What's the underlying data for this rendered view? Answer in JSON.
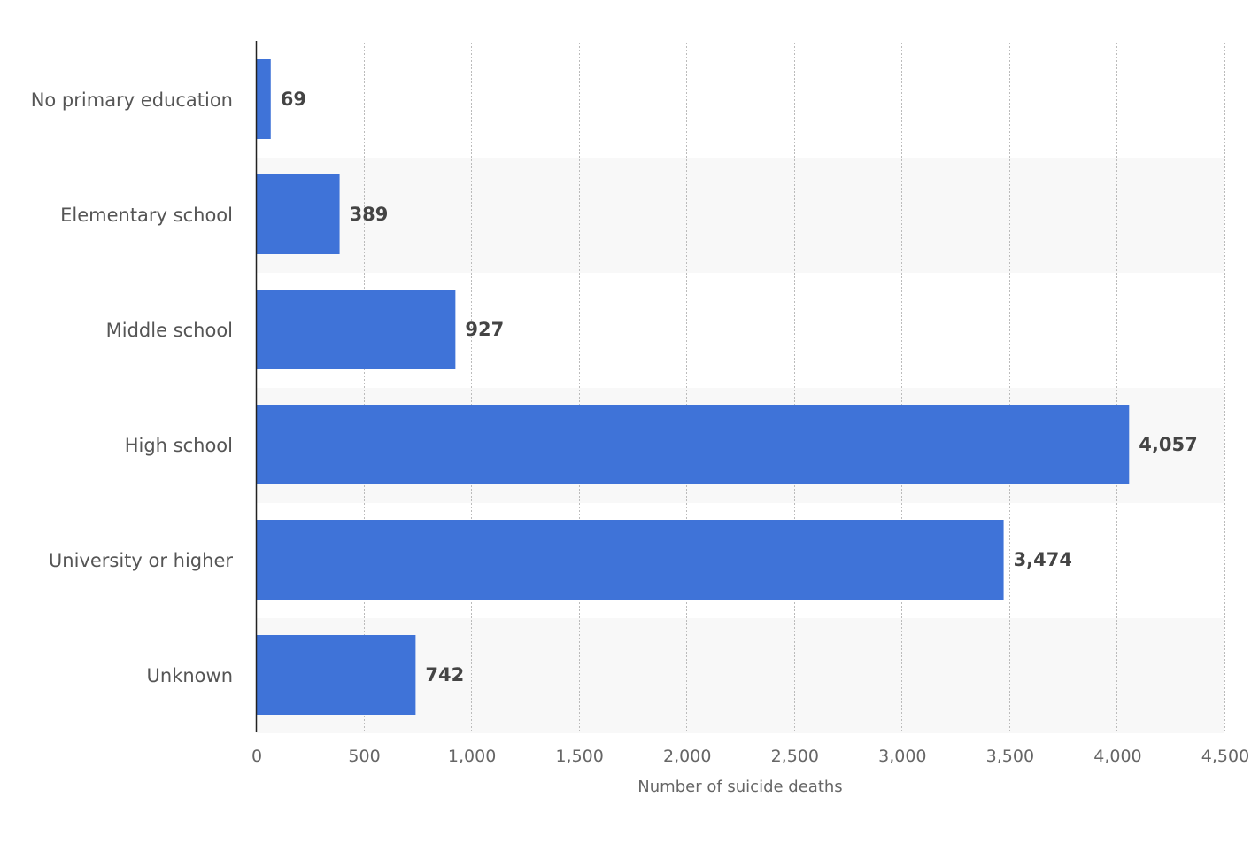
{
  "chart_data": {
    "type": "bar",
    "orientation": "horizontal",
    "categories": [
      "No primary education",
      "Elementary school",
      "Middle school",
      "High school",
      "University or higher",
      "Unknown"
    ],
    "values": [
      69,
      389,
      927,
      4057,
      3474,
      742
    ],
    "value_labels": [
      "69",
      "389",
      "927",
      "4,057",
      "3,474",
      "742"
    ],
    "xlabel": "Number of suicide deaths",
    "ylabel": "",
    "xlim": [
      0,
      4500
    ],
    "x_ticks": [
      0,
      500,
      1000,
      1500,
      2000,
      2500,
      3000,
      3500,
      4000,
      4500
    ],
    "x_tick_labels": [
      "0",
      "500",
      "1,000",
      "1,500",
      "2,000",
      "2,500",
      "3,000",
      "3,500",
      "4,000",
      "4,500"
    ],
    "grid": true,
    "bar_color": "#3f73d8",
    "band_color": "#f8f8f8",
    "grid_color": "#bbbbbb"
  }
}
